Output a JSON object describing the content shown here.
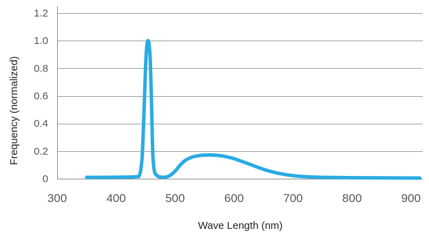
{
  "chart_data": {
    "type": "line",
    "title": "",
    "xlabel": "Wave Length (nm)",
    "ylabel": "Frequency (normalized)",
    "xlim": [
      300,
      920
    ],
    "ylim": [
      0,
      1.25
    ],
    "x_ticks": [
      300,
      400,
      500,
      600,
      700,
      800,
      900
    ],
    "y_ticks": [
      0,
      0.2,
      0.4,
      0.6,
      0.8,
      1.0,
      1.2
    ],
    "x_tick_labels": [
      "300",
      "400",
      "500",
      "600",
      "700",
      "800",
      "900"
    ],
    "y_tick_labels": [
      "0",
      "0.2",
      "0.4",
      "0.6",
      "0.8",
      "1.0",
      "1.2"
    ],
    "grid": "horizontal",
    "line_color": "#29ABE2",
    "grid_color": "#9E9E9E",
    "series": [
      {
        "x": [
          350,
          380,
          420,
          435,
          440,
          444,
          447,
          450,
          452,
          454,
          456,
          458,
          460,
          462,
          464,
          466,
          470,
          475,
          480,
          485,
          490,
          495,
          500,
          505,
          510,
          515,
          520,
          530,
          540,
          550,
          560,
          570,
          580,
          590,
          600,
          610,
          620,
          630,
          640,
          650,
          660,
          670,
          680,
          700,
          720,
          750,
          800,
          850,
          900,
          915
        ],
        "y": [
          0.01,
          0.01,
          0.012,
          0.015,
          0.03,
          0.15,
          0.45,
          0.82,
          0.96,
          1.0,
          0.97,
          0.85,
          0.55,
          0.2,
          0.08,
          0.04,
          0.02,
          0.012,
          0.01,
          0.012,
          0.02,
          0.035,
          0.055,
          0.08,
          0.105,
          0.125,
          0.14,
          0.158,
          0.167,
          0.171,
          0.172,
          0.17,
          0.165,
          0.156,
          0.145,
          0.13,
          0.115,
          0.099,
          0.083,
          0.068,
          0.055,
          0.044,
          0.035,
          0.022,
          0.015,
          0.01,
          0.007,
          0.006,
          0.005,
          0.005
        ]
      }
    ]
  }
}
